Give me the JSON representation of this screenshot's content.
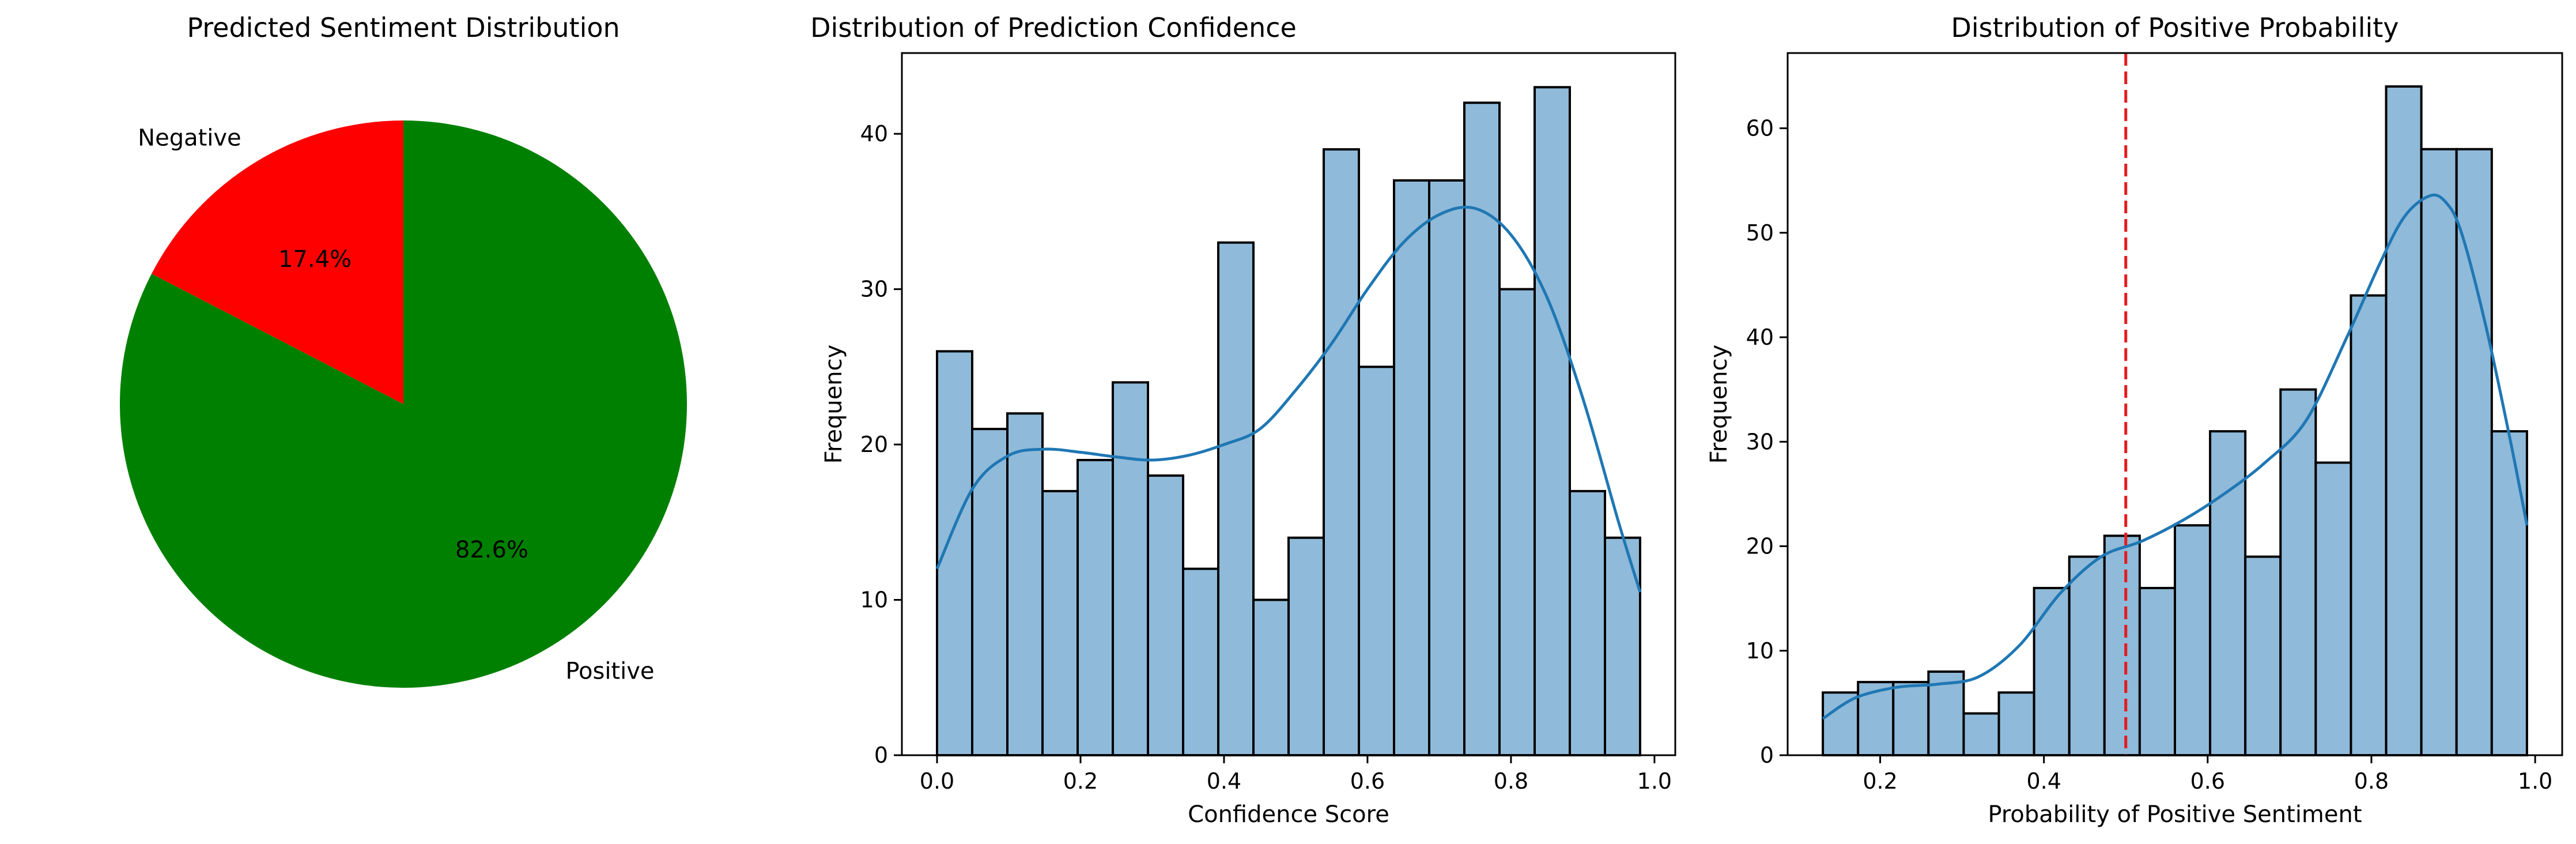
{
  "chart_data": [
    {
      "type": "pie",
      "title": "Predicted Sentiment Distribution",
      "categories": [
        "Negative",
        "Positive"
      ],
      "values": [
        17.4,
        82.6
      ],
      "value_labels": [
        "17.4%",
        "82.6%"
      ],
      "colors": [
        "#ff0000",
        "#008000"
      ],
      "start_angle": 90
    },
    {
      "type": "bar",
      "subtype": "histogram_with_kde",
      "title": "Distribution of Prediction Confidence",
      "xlabel": "Confidence Score",
      "ylabel": "Frequency",
      "bin_start": 0.0,
      "bin_width": 0.049,
      "values": [
        26,
        21,
        22,
        17,
        19,
        24,
        18,
        12,
        33,
        10,
        14,
        39,
        25,
        37,
        37,
        42,
        30,
        43,
        17,
        14
      ],
      "xlim": [
        -0.049,
        1.029
      ],
      "ylim": [
        0,
        45.2
      ],
      "xticks": [
        "0.0",
        "0.2",
        "0.4",
        "0.6",
        "0.8",
        "1.0"
      ],
      "yticks": [
        "0",
        "10",
        "20",
        "30",
        "40"
      ],
      "kde": {
        "x": [
          0.0,
          0.05,
          0.1,
          0.15,
          0.2,
          0.25,
          0.3,
          0.35,
          0.4,
          0.45,
          0.5,
          0.55,
          0.6,
          0.65,
          0.7,
          0.75,
          0.8,
          0.85,
          0.9,
          0.95,
          0.98
        ],
        "y": [
          12,
          17.2,
          19.3,
          19.7,
          19.5,
          19.2,
          19.0,
          19.3,
          20.0,
          21.0,
          23.5,
          26.5,
          30.0,
          33.0,
          34.8,
          35.2,
          33.5,
          29.5,
          23.0,
          15.0,
          10.5
        ]
      },
      "bar_color": "#8fbad9",
      "line_color": "#1f77b4"
    },
    {
      "type": "bar",
      "subtype": "histogram_with_kde",
      "title": "Distribution of Positive Probability",
      "xlabel": "Probability of Positive Sentiment",
      "ylabel": "Frequency",
      "bin_start": 0.13,
      "bin_width": 0.043,
      "values": [
        6,
        7,
        7,
        8,
        4,
        6,
        16,
        19,
        21,
        16,
        22,
        31,
        19,
        35,
        28,
        44,
        64,
        58,
        58,
        31
      ],
      "xlim": [
        0.087,
        1.033
      ],
      "ylim": [
        0,
        67.2
      ],
      "xticks": [
        "0.2",
        "0.4",
        "0.6",
        "0.8",
        "1.0"
      ],
      "yticks": [
        "0",
        "10",
        "20",
        "30",
        "40",
        "50",
        "60"
      ],
      "kde": {
        "x": [
          0.13,
          0.17,
          0.22,
          0.27,
          0.32,
          0.37,
          0.42,
          0.47,
          0.52,
          0.57,
          0.62,
          0.67,
          0.72,
          0.77,
          0.81,
          0.84,
          0.87,
          0.89,
          0.91,
          0.94,
          0.97,
          0.99
        ],
        "y": [
          3.5,
          5.5,
          6.5,
          6.8,
          7.5,
          10.5,
          15.5,
          19.0,
          20.5,
          22.5,
          25.0,
          28.0,
          32.0,
          40.0,
          47.0,
          51.5,
          53.5,
          53.0,
          50.0,
          41.0,
          30.0,
          22.0
        ]
      },
      "threshold": 0.5,
      "threshold_color": "#e41a1c",
      "bar_color": "#8fbad9",
      "line_color": "#1f77b4"
    }
  ]
}
